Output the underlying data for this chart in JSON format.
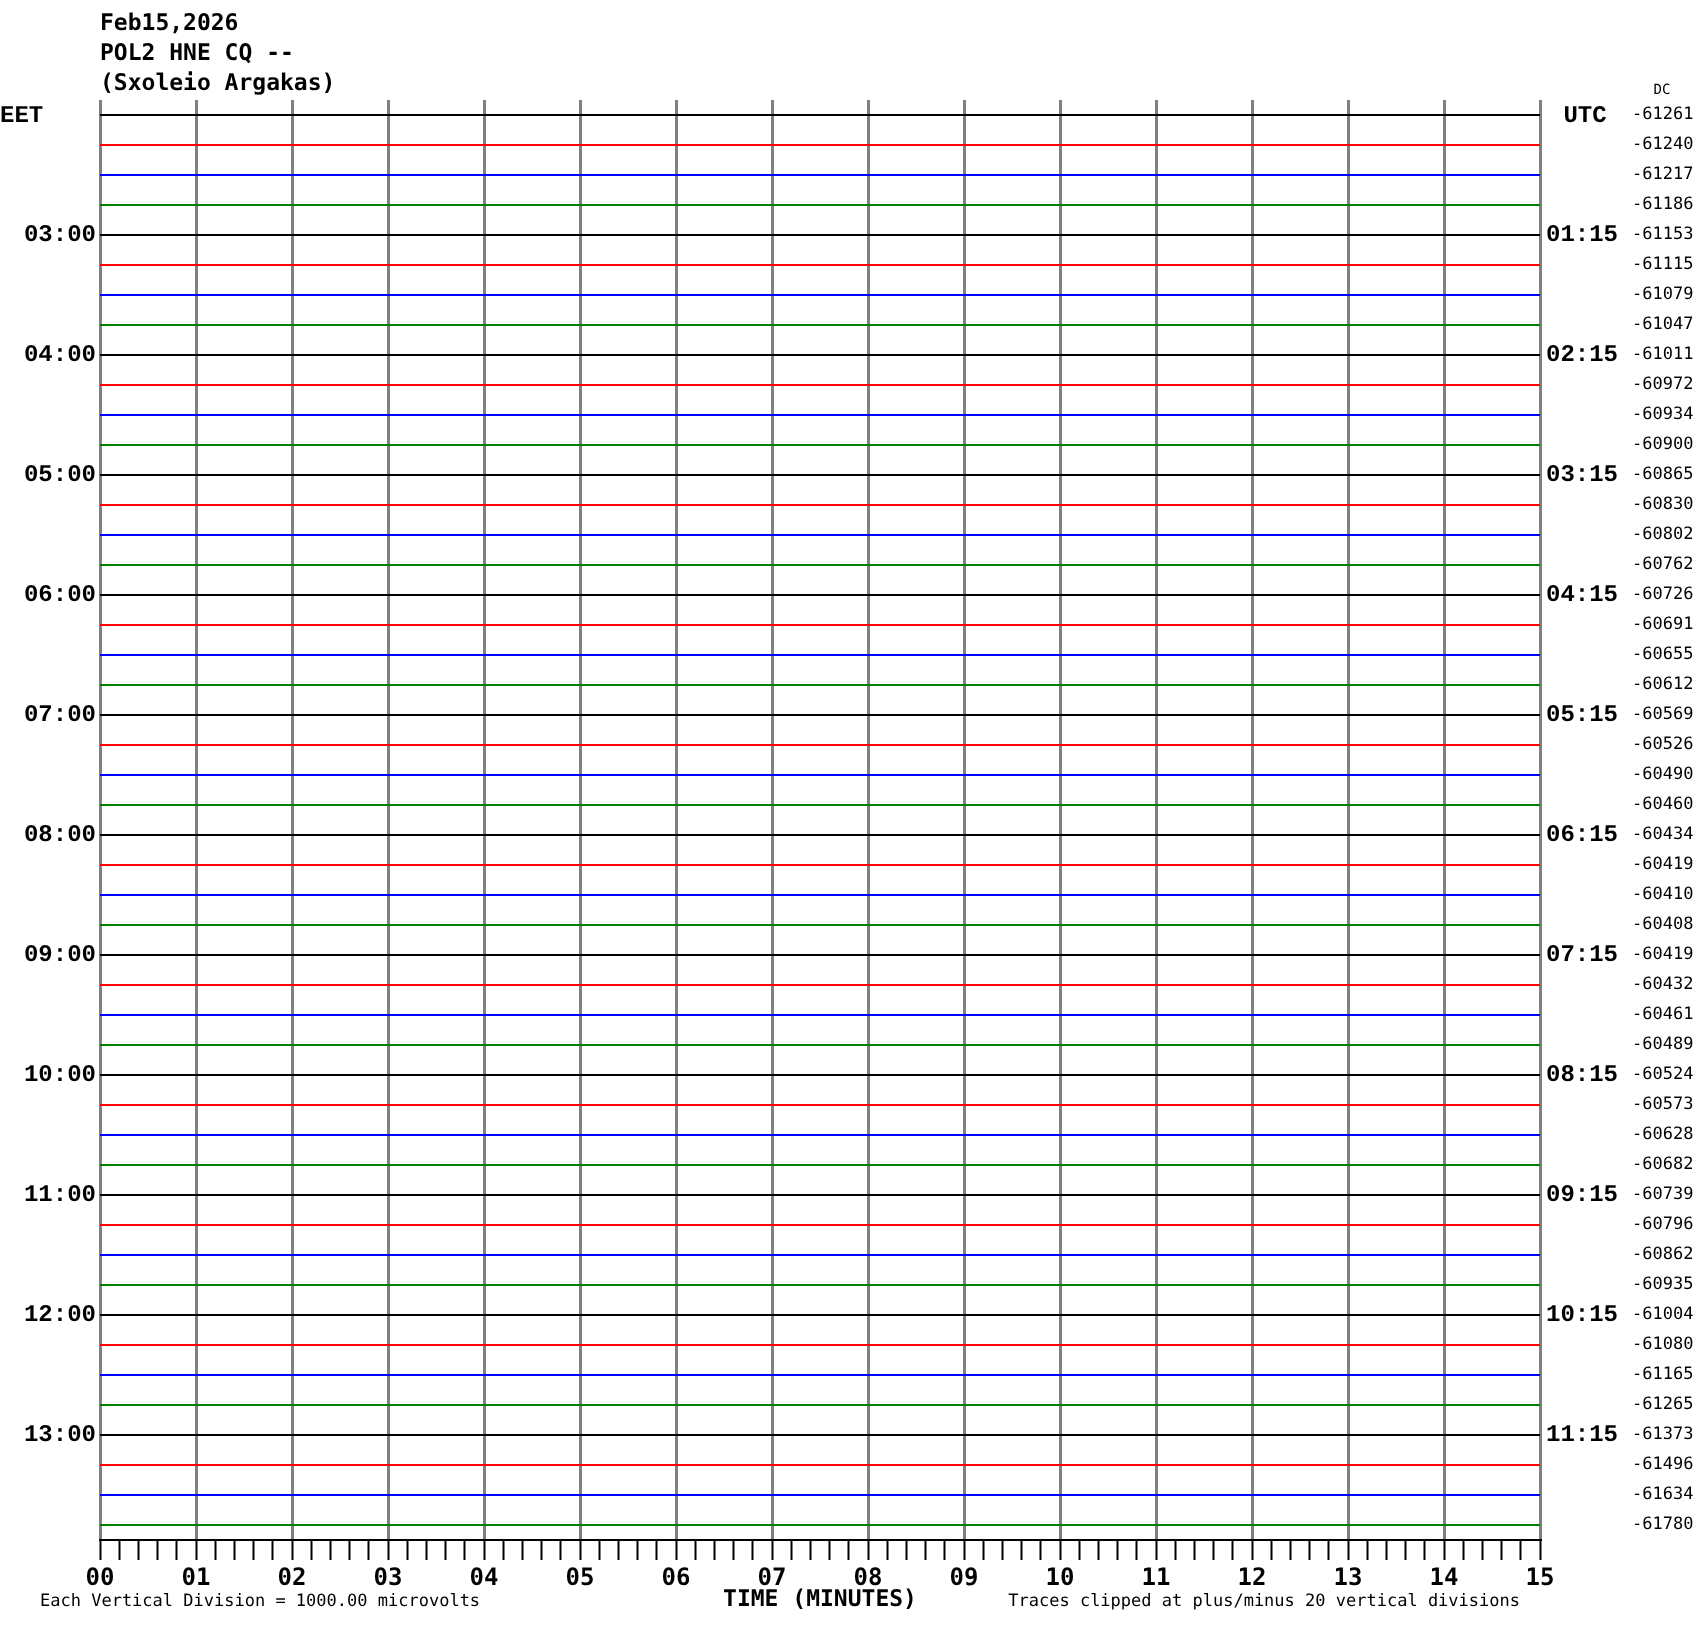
{
  "chart_data": {
    "type": "line",
    "title": "Feb15,2026",
    "subtitle": "POL2 HNE CQ --\n(Sxoleio Argakas)",
    "xlabel": "TIME (MINUTES)",
    "ylabel": "EET",
    "y2label": "UTC",
    "annotations": [
      "Each Vertical Division = 1000.00 microvolts",
      "Traces clipped at plus/minus 20 vertical divisions",
      "DC",
      "-61261",
      "-61240",
      "-61217",
      "-61186",
      "-61153",
      "-61115",
      "-61079",
      "-61047",
      "-61011",
      "-60972",
      "-60934",
      "-60900",
      "-60865",
      "-60830",
      "-60802",
      "-60762",
      "-60726",
      "-60691",
      "-60655",
      "-60612",
      "-60569",
      "-60526",
      "-60490",
      "-60460",
      "-60434",
      "-60419",
      "-60410",
      "-60408",
      "-60419",
      "-60432",
      "-60461",
      "-60489",
      "-60524",
      "-60573",
      "-60628",
      "-60682",
      "-60739",
      "-60796",
      "-60862",
      "-60935",
      "-61004",
      "-61080",
      "-61165",
      "-61265",
      "-61373",
      "-61496",
      "-61634",
      "-61780"
    ],
    "x": [
      0,
      15
    ],
    "xlim": [
      0,
      15
    ],
    "xticks": [
      {
        "value": 0,
        "label": "00"
      },
      {
        "value": 0.2,
        "label": null
      },
      {
        "value": 0.4,
        "label": null
      },
      {
        "value": 0.6,
        "label": null
      },
      {
        "value": 0.8,
        "label": null
      },
      {
        "value": 1,
        "label": "01"
      },
      {
        "value": 1.2,
        "label": null
      },
      {
        "value": 1.4,
        "label": null
      },
      {
        "value": 1.6,
        "label": null
      },
      {
        "value": 1.8,
        "label": null
      },
      {
        "value": 2,
        "label": "02"
      },
      {
        "value": 2.2,
        "label": null
      },
      {
        "value": 2.4,
        "label": null
      },
      {
        "value": 2.6,
        "label": null
      },
      {
        "value": 2.8,
        "label": null
      },
      {
        "value": 3,
        "label": "03"
      },
      {
        "value": 3.2,
        "label": null
      },
      {
        "value": 3.4,
        "label": null
      },
      {
        "value": 3.6,
        "label": null
      },
      {
        "value": 3.8,
        "label": null
      },
      {
        "value": 4,
        "label": "04"
      },
      {
        "value": 4.2,
        "label": null
      },
      {
        "value": 4.4,
        "label": null
      },
      {
        "value": 4.6,
        "label": null
      },
      {
        "value": 4.8,
        "label": null
      },
      {
        "value": 5,
        "label": "05"
      },
      {
        "value": 5.2,
        "label": null
      },
      {
        "value": 5.4,
        "label": null
      },
      {
        "value": 5.6,
        "label": null
      },
      {
        "value": 5.8,
        "label": null
      },
      {
        "value": 6,
        "label": "06"
      },
      {
        "value": 6.2,
        "label": null
      },
      {
        "value": 6.4,
        "label": null
      },
      {
        "value": 6.6,
        "label": null
      },
      {
        "value": 6.8,
        "label": null
      },
      {
        "value": 7,
        "label": "07"
      },
      {
        "value": 7.2,
        "label": null
      },
      {
        "value": 7.4,
        "label": null
      },
      {
        "value": 7.6,
        "label": null
      },
      {
        "value": 7.8,
        "label": null
      },
      {
        "value": 8,
        "label": "08"
      },
      {
        "value": 8.2,
        "label": null
      },
      {
        "value": 8.4,
        "label": null
      },
      {
        "value": 8.6,
        "label": null
      },
      {
        "value": 8.8,
        "label": null
      },
      {
        "value": 9,
        "label": "09"
      },
      {
        "value": 9.2,
        "label": null
      },
      {
        "value": 9.4,
        "label": null
      },
      {
        "value": 9.6,
        "label": null
      },
      {
        "value": 9.8,
        "label": null
      },
      10,
      {
        "value": 10.2,
        "label": null
      },
      {
        "value": 10.4,
        "label": null
      },
      {
        "value": 10.6,
        "label": null
      },
      {
        "value": 10.8,
        "label": null
      },
      11,
      {
        "value": 11.2,
        "label": null
      },
      {
        "value": 11.4,
        "label": null
      },
      {
        "value": 11.6,
        "label": null
      },
      {
        "value": 11.8,
        "label": null
      },
      12,
      {
        "value": 12.2,
        "label": null
      },
      {
        "value": 12.4,
        "label": null
      },
      {
        "value": 12.6,
        "label": null
      },
      {
        "value": 12.8,
        "label": null
      },
      13,
      {
        "value": 13.2,
        "label": null
      },
      {
        "value": 13.4,
        "label": null
      },
      {
        "value": 13.6,
        "label": null
      },
      {
        "value": 13.8,
        "label": null
      },
      14,
      {
        "value": 14.2,
        "label": null
      },
      {
        "value": 14.4,
        "label": null
      },
      {
        "value": 14.6,
        "label": null
      },
      {
        "value": 14.8,
        "label": null
      },
      15
    ],
    "ylim": [
      13.875,
      1.875
    ],
    "yticks": [
      {
        "value": 3,
        "label": "03:00"
      },
      {
        "value": 4,
        "label": "04:00"
      },
      {
        "value": 5,
        "label": "05:00"
      },
      {
        "value": 6,
        "label": "06:00"
      },
      {
        "value": 7,
        "label": "07:00"
      },
      {
        "value": 8,
        "label": "08:00"
      },
      {
        "value": 9,
        "label": "09:00"
      },
      {
        "value": 10,
        "label": "10:00"
      },
      {
        "value": 11,
        "label": "11:00"
      },
      {
        "value": 12,
        "label": "12:00"
      },
      {
        "value": 13,
        "label": "13:00"
      }
    ],
    "y2lim": [
      12.125,
      0.125
    ],
    "y2ticks": [
      {
        "value": 1.25,
        "label": "01:15"
      },
      {
        "value": 2.25,
        "label": "02:15"
      },
      {
        "value": 3.25,
        "label": "03:15"
      },
      {
        "value": 4.25,
        "label": "04:15"
      },
      {
        "value": 5.25,
        "label": "05:15"
      },
      {
        "value": 6.25,
        "label": "06:15"
      },
      {
        "value": 7.25,
        "label": "07:15"
      },
      {
        "value": 8.25,
        "label": "08:15"
      },
      {
        "value": 9.25,
        "label": "09:15"
      },
      {
        "value": 10.25,
        "label": "10:15"
      },
      {
        "value": 11.25,
        "label": "11:15"
      }
    ],
    "grid": "x",
    "marker": "none",
    "line_style": "solid",
    "series": [
      {
        "color": "#000000",
        "values": [
          2,
          2
        ]
      },
      {
        "color": "#ff0000",
        "values": [
          2.25,
          2.25
        ]
      },
      {
        "color": "#0000ff",
        "values": [
          2.5,
          2.5
        ]
      },
      {
        "color": "#008000",
        "values": [
          2.75,
          2.75
        ]
      },
      {
        "color": "#000000",
        "values": [
          3,
          3
        ]
      },
      {
        "color": "#ff0000",
        "values": [
          3.25,
          3.25
        ]
      },
      {
        "color": "#0000ff",
        "values": [
          3.5,
          3.5
        ]
      },
      {
        "color": "#008000",
        "values": [
          3.75,
          3.75
        ]
      },
      {
        "color": "#000000",
        "values": [
          4,
          4
        ]
      },
      {
        "color": "#ff0000",
        "values": [
          4.25,
          4.25
        ]
      },
      {
        "color": "#0000ff",
        "values": [
          4.5,
          4.5
        ]
      },
      {
        "color": "#008000",
        "values": [
          4.75,
          4.75
        ]
      },
      {
        "color": "#000000",
        "values": [
          5,
          5
        ]
      },
      {
        "color": "#ff0000",
        "values": [
          5.25,
          5.25
        ]
      },
      {
        "color": "#0000ff",
        "values": [
          5.5,
          5.5
        ]
      },
      {
        "color": "#008000",
        "values": [
          5.75,
          5.75
        ]
      },
      {
        "color": "#000000",
        "values": [
          6,
          6
        ]
      },
      {
        "color": "#ff0000",
        "values": [
          6.25,
          6.25
        ]
      },
      {
        "color": "#0000ff",
        "values": [
          6.5,
          6.5
        ]
      },
      {
        "color": "#008000",
        "values": [
          6.75,
          6.75
        ]
      },
      {
        "color": "#000000",
        "values": [
          7,
          7
        ]
      },
      {
        "color": "#ff0000",
        "values": [
          7.25,
          7.25
        ]
      },
      {
        "color": "#0000ff",
        "values": [
          7.5,
          7.5
        ]
      },
      {
        "color": "#008000",
        "values": [
          7.75,
          7.75
        ]
      },
      {
        "color": "#000000",
        "values": [
          8,
          8
        ]
      },
      {
        "color": "#ff0000",
        "values": [
          8.25,
          8.25
        ]
      },
      {
        "color": "#0000ff",
        "values": [
          8.5,
          8.5
        ]
      },
      {
        "color": "#008000",
        "values": [
          8.75,
          8.75
        ]
      },
      {
        "color": "#000000",
        "values": [
          9,
          9
        ]
      },
      {
        "color": "#ff0000",
        "values": [
          9.25,
          9.25
        ]
      },
      {
        "color": "#0000ff",
        "values": [
          9.5,
          9.5
        ]
      },
      {
        "color": "#008000",
        "values": [
          9.75,
          9.75
        ]
      },
      {
        "color": "#000000",
        "values": [
          10,
          10
        ]
      },
      {
        "color": "#ff0000",
        "values": [
          10.25,
          10.25
        ]
      },
      {
        "color": "#0000ff",
        "values": [
          10.5,
          10.5
        ]
      },
      {
        "color": "#008000",
        "values": [
          10.75,
          10.75
        ]
      },
      {
        "color": "#000000",
        "values": [
          11,
          11
        ]
      },
      {
        "color": "#ff0000",
        "values": [
          11.25,
          11.25
        ]
      },
      {
        "color": "#0000ff",
        "values": [
          11.5,
          11.5
        ]
      },
      {
        "color": "#008000",
        "values": [
          11.75,
          11.75
        ]
      },
      {
        "color": "#000000",
        "values": [
          12,
          12
        ]
      },
      {
        "color": "#ff0000",
        "values": [
          12.25,
          12.25
        ]
      },
      {
        "color": "#0000ff",
        "values": [
          12.5,
          12.5
        ]
      },
      {
        "color": "#008000",
        "values": [
          12.75,
          12.75
        ]
      },
      {
        "color": "#000000",
        "values": [
          13,
          13
        ]
      },
      {
        "color": "#ff0000",
        "values": [
          13.25,
          13.25
        ]
      },
      {
        "color": "#0000ff",
        "values": [
          13.5,
          13.5
        ]
      },
      {
        "color": "#008000",
        "values": [
          13.75,
          13.75
        ]
      }
    ]
  }
}
